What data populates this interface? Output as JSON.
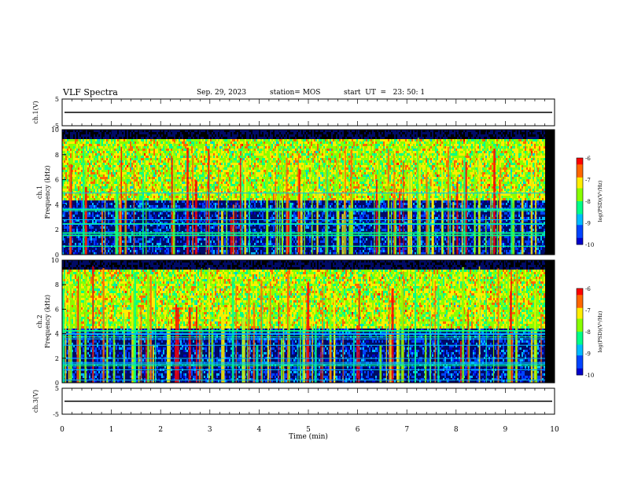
{
  "header": {
    "title": "VLF Spectra",
    "date": "Sep. 29, 2023",
    "station": "station= MOS",
    "start_ut": "start  UT  =   23: 50: 1"
  },
  "chart_data": {
    "type": "heatmap",
    "xlabel": "Time  (min)",
    "xlim": [
      0,
      10
    ],
    "x_ticks": [
      "0",
      "1",
      "2",
      "3",
      "4",
      "5",
      "6",
      "7",
      "8",
      "9",
      "10"
    ],
    "panels": [
      {
        "id": "ch1-voltage",
        "ylabel": "ch.1(V)",
        "ylim": [
          -5,
          5
        ],
        "y_ticks": [
          "5",
          "-5"
        ],
        "trace_level": 0
      },
      {
        "id": "ch1-spectrogram",
        "ylabel": "ch.1\nFrequency (kHz)",
        "ylim": [
          0,
          10
        ],
        "y_ticks": [
          "0",
          "2",
          "4",
          "6",
          "8",
          "10"
        ],
        "colorbar": {
          "label": "log(PSD)(V²/Hz)",
          "range": [
            -10,
            -6
          ],
          "ticks": [
            "-6",
            "-7",
            "-8",
            "-9",
            "-10"
          ]
        },
        "band_low_khz": 4.5,
        "band_high_khz": 9.5
      },
      {
        "id": "ch2-spectrogram",
        "ylabel": "ch.2\nFrequency (kHz)",
        "ylim": [
          0,
          10
        ],
        "y_ticks": [
          "0",
          "2",
          "4",
          "6",
          "8",
          "10"
        ],
        "colorbar": {
          "label": "log(PSD)(V²/Hz)",
          "range": [
            -10,
            -6
          ],
          "ticks": [
            "-6",
            "-7",
            "-8",
            "-9",
            "-10"
          ]
        },
        "band_low_khz": 4.5,
        "band_high_khz": 9.5
      },
      {
        "id": "ch3-voltage",
        "ylabel": "ch.3(V)",
        "ylim": [
          -5,
          5
        ],
        "y_ticks": [
          "5",
          "-5"
        ],
        "trace_level": 0
      }
    ],
    "colormap": [
      "#000000",
      "#0000cc",
      "#0044ff",
      "#00bbff",
      "#00ff88",
      "#88ff00",
      "#ffee00",
      "#ff6600",
      "#ff0000",
      "#ffffff"
    ]
  }
}
